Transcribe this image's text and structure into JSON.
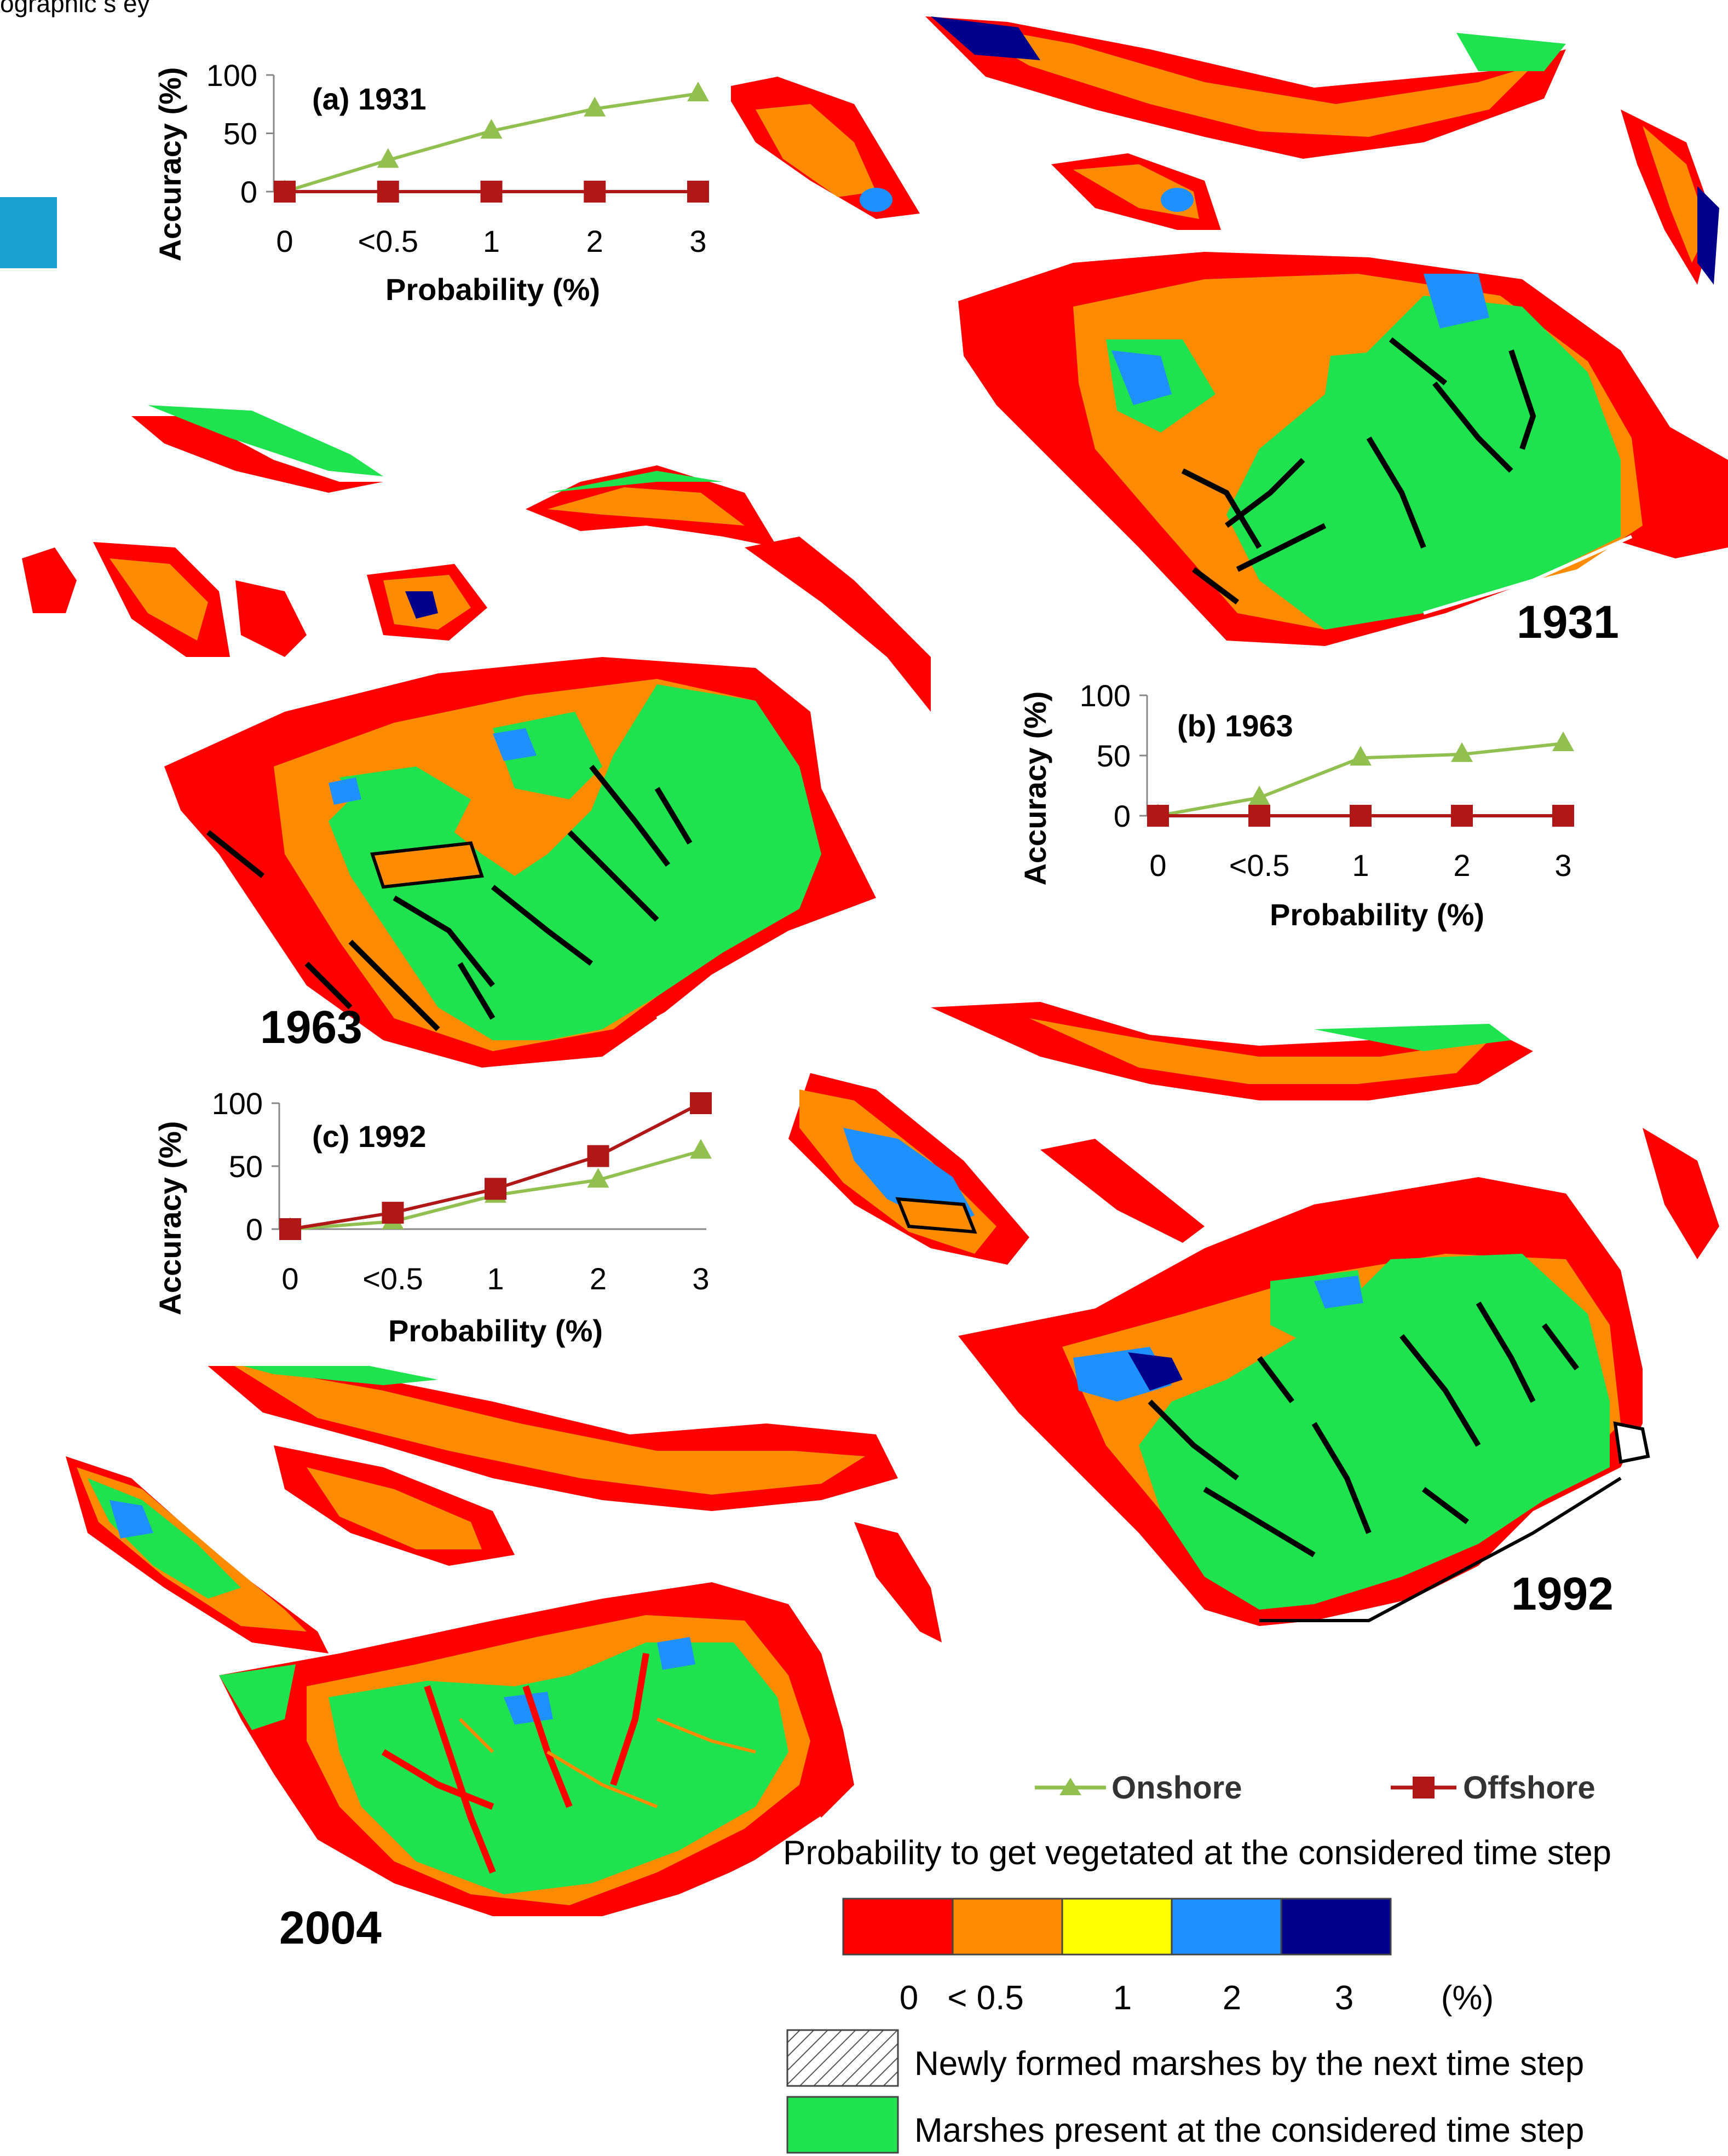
{
  "header_fragment": "ographic s ey",
  "charts": [
    {
      "panel": "(a) 1931",
      "xlabel": "Probability (%)",
      "ylabel": "Accuracy (%)",
      "yticks": [
        0,
        50,
        100
      ],
      "categories": [
        "0",
        "<0.5",
        "1",
        "2",
        "3"
      ]
    },
    {
      "panel": "(b) 1963",
      "xlabel": "Probability (%)",
      "ylabel": "Accuracy (%)",
      "yticks": [
        0,
        50,
        100
      ],
      "categories": [
        "0",
        "<0.5",
        "1",
        "2",
        "3"
      ]
    },
    {
      "panel": "(c) 1992",
      "xlabel": "Probability (%)",
      "ylabel": "Accuracy (%)",
      "yticks": [
        0,
        50,
        100
      ],
      "categories": [
        "0",
        "<0.5",
        "1",
        "2",
        "3"
      ]
    }
  ],
  "chart_data": [
    {
      "type": "line",
      "title": "(a) 1931",
      "xlabel": "Probability (%)",
      "ylabel": "Accuracy (%)",
      "categories": [
        "0",
        "<0.5",
        "1",
        "2",
        "3"
      ],
      "ylim": [
        0,
        100
      ],
      "series": [
        {
          "name": "Onshore",
          "values": [
            0,
            27,
            52,
            71,
            84
          ],
          "color": "#92c050",
          "marker": "triangle"
        },
        {
          "name": "Offshore",
          "values": [
            0,
            0,
            0,
            0,
            0
          ],
          "color": "#b01818",
          "marker": "square"
        }
      ]
    },
    {
      "type": "line",
      "title": "(b) 1963",
      "xlabel": "Probability (%)",
      "ylabel": "Accuracy (%)",
      "categories": [
        "0",
        "<0.5",
        "1",
        "2",
        "3"
      ],
      "ylim": [
        0,
        100
      ],
      "series": [
        {
          "name": "Onshore",
          "values": [
            0,
            15,
            48,
            51,
            60
          ],
          "color": "#92c050",
          "marker": "triangle"
        },
        {
          "name": "Offshore",
          "values": [
            0,
            0,
            0,
            0,
            0
          ],
          "color": "#b01818",
          "marker": "square"
        }
      ]
    },
    {
      "type": "line",
      "title": "(c) 1992",
      "xlabel": "Probability (%)",
      "ylabel": "Accuracy (%)",
      "categories": [
        "0",
        "<0.5",
        "1",
        "2",
        "3"
      ],
      "ylim": [
        0,
        100
      ],
      "series": [
        {
          "name": "Onshore",
          "values": [
            0,
            6,
            27,
            39,
            62
          ],
          "color": "#92c050",
          "marker": "triangle"
        },
        {
          "name": "Offshore",
          "values": [
            0,
            13,
            32,
            58,
            100
          ],
          "color": "#b01818",
          "marker": "square"
        }
      ]
    }
  ],
  "maps": [
    {
      "year": "1931"
    },
    {
      "year": "1963"
    },
    {
      "year": "1992"
    },
    {
      "year": "2004"
    }
  ],
  "legend": {
    "onshore": "Onshore",
    "offshore": "Offshore",
    "scale_title": "Probability to get vegetated at the considered time step",
    "scale_colors": [
      "#ff0000",
      "#ff8c00",
      "#ffff00",
      "#1e90ff",
      "#00008b"
    ],
    "scale_labels": [
      "0",
      "< 0.5",
      "1",
      "2",
      "3"
    ],
    "unit": "(%)",
    "newly_formed": "Newly formed marshes by the next time step",
    "present": "Marshes present at the considered time step"
  },
  "colors": {
    "marsh_green": "#1ee34e",
    "water_red": "#ff0000",
    "orange": "#ff8c00",
    "blue": "#1e90ff",
    "navy": "#00008b",
    "creek_black": "#000000",
    "accent_tab": "#1aa3d1"
  }
}
